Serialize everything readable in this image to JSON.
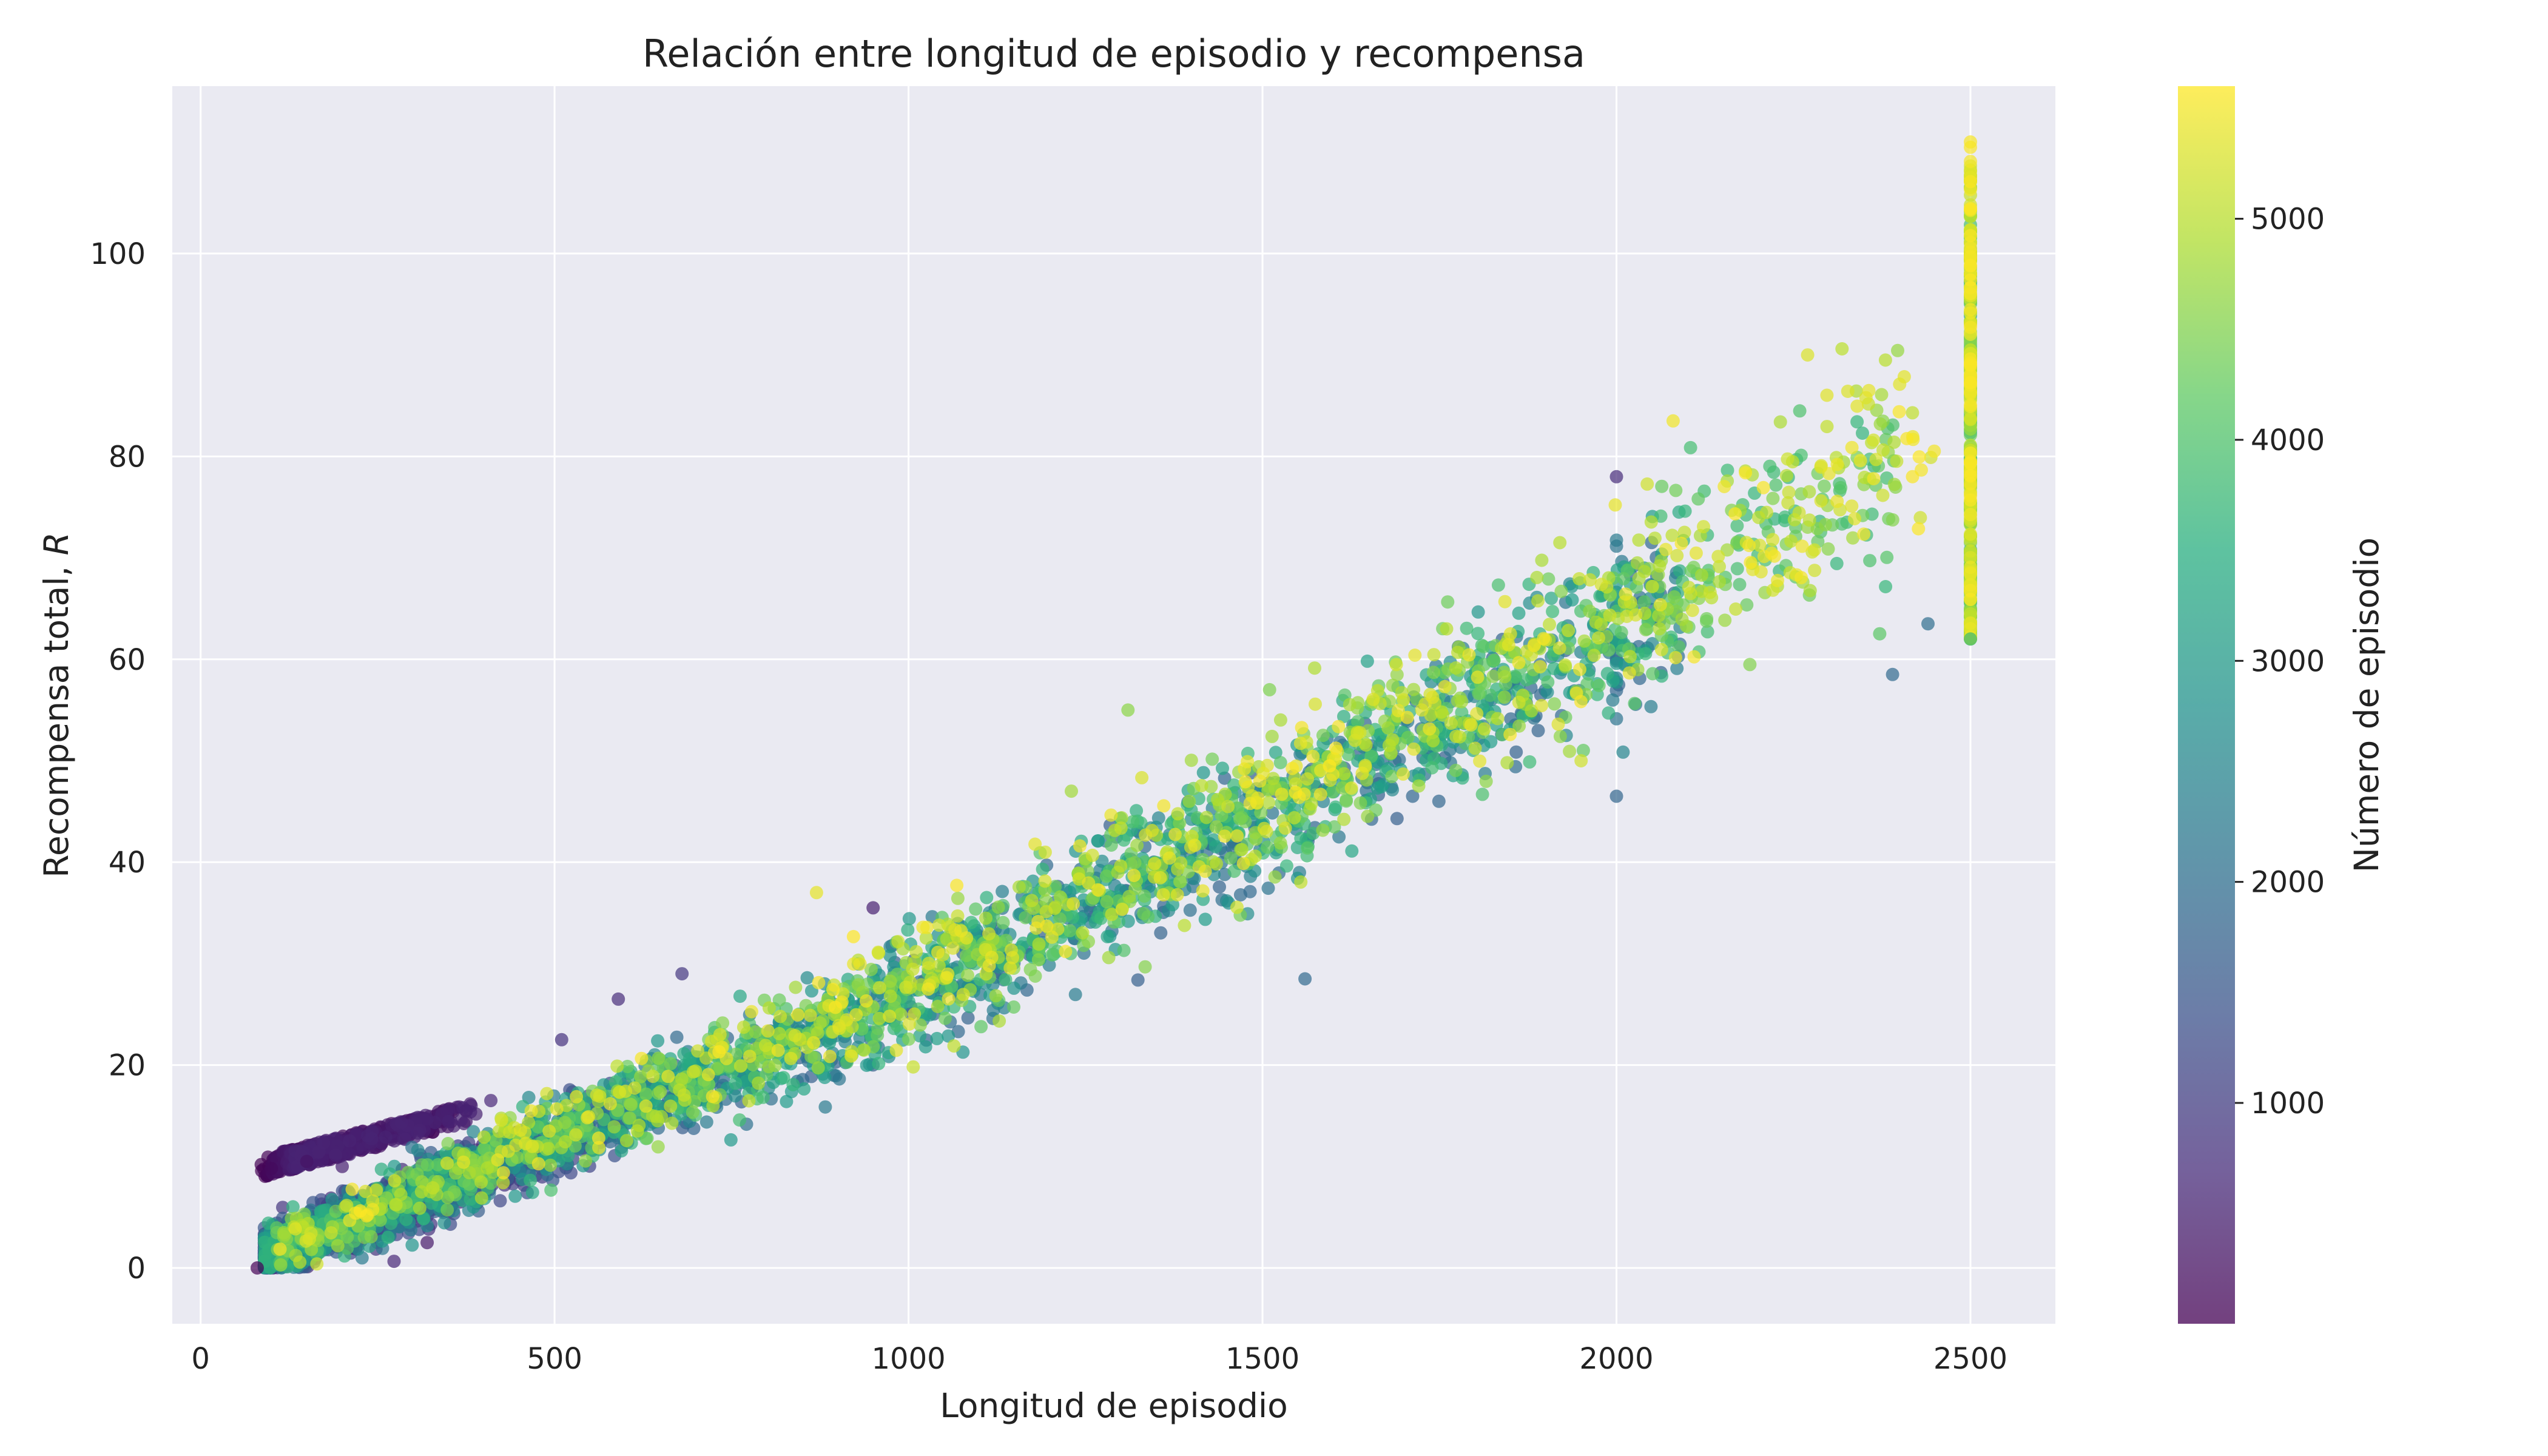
{
  "chart_data": {
    "type": "scatter",
    "title": "Relación entre longitud de episodio y recompensa",
    "xlabel": "Longitud de episodio",
    "ylabel": "Recompensa total, ",
    "ylabel_symbol": "R",
    "colorbar_label": "Número de episodio",
    "xlim": [
      -40,
      2620
    ],
    "ylim": [
      -5.5,
      116.5
    ],
    "xticks": [
      0,
      500,
      1000,
      1500,
      2000,
      2500
    ],
    "yticks": [
      0,
      20,
      40,
      60,
      80,
      100
    ],
    "colorbar_ticks": [
      1000,
      2000,
      3000,
      4000,
      5000
    ],
    "colorbar_range": [
      1,
      5600
    ],
    "colormap": "viridis",
    "marker_alpha": 0.7,
    "grid": true,
    "plot_background": "#eaeaf2",
    "n_points": 5600,
    "trend": {
      "description": "reward grows roughly linearly with episode length; many episodes capped at length 2500 with rewards 62–111",
      "approx_anchors": [
        [
          80,
          1
        ],
        [
          500,
          13
        ],
        [
          1000,
          27
        ],
        [
          1500,
          45
        ],
        [
          2000,
          63
        ],
        [
          2500,
          82
        ]
      ],
      "cap_length": 2500,
      "cap_reward_range": [
        62,
        111
      ]
    },
    "sample_points": [
      {
        "x": 80,
        "y": 0,
        "episode": 10
      },
      {
        "x": 100,
        "y": 9.8,
        "episode": 150
      },
      {
        "x": 150,
        "y": 10.5,
        "episode": 300
      },
      {
        "x": 200,
        "y": 10,
        "episode": 500
      },
      {
        "x": 320,
        "y": 2.5,
        "episode": 400
      },
      {
        "x": 410,
        "y": 16.5,
        "episode": 600
      },
      {
        "x": 510,
        "y": 22.5,
        "episode": 800
      },
      {
        "x": 590,
        "y": 26.5,
        "episode": 700
      },
      {
        "x": 680,
        "y": 29,
        "episode": 900
      },
      {
        "x": 870,
        "y": 37,
        "episode": 5400
      },
      {
        "x": 950,
        "y": 35.5,
        "episode": 500
      },
      {
        "x": 1230,
        "y": 47,
        "episode": 4800
      },
      {
        "x": 1310,
        "y": 55,
        "episode": 4600
      },
      {
        "x": 1510,
        "y": 57,
        "episode": 4500
      },
      {
        "x": 1560,
        "y": 28.5,
        "episode": 1900
      },
      {
        "x": 1760,
        "y": 63,
        "episode": 5000
      },
      {
        "x": 1920,
        "y": 71.5,
        "episode": 5000
      },
      {
        "x": 1950,
        "y": 50,
        "episode": 5200
      },
      {
        "x": 2000,
        "y": 78,
        "episode": 700
      },
      {
        "x": 2000,
        "y": 46.5,
        "episode": 1800
      },
      {
        "x": 2080,
        "y": 83.5,
        "episode": 5500
      },
      {
        "x": 2270,
        "y": 90,
        "episode": 5300
      },
      {
        "x": 2380,
        "y": 89.5,
        "episode": 5000
      },
      {
        "x": 2390,
        "y": 58.5,
        "episode": 1900
      },
      {
        "x": 2440,
        "y": 63.5,
        "episode": 2000
      },
      {
        "x": 2500,
        "y": 111,
        "episode": 5550
      },
      {
        "x": 2500,
        "y": 62,
        "episode": 3800
      }
    ]
  }
}
